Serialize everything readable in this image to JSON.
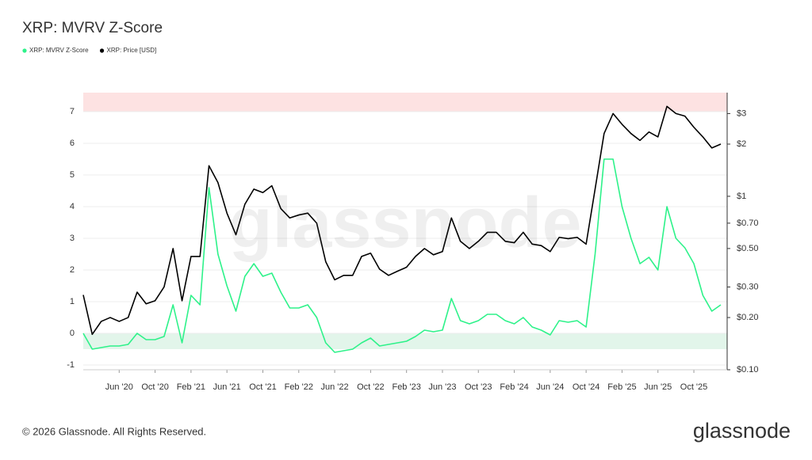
{
  "chart_data": {
    "type": "line",
    "title": "XRP: MVRV Z-Score",
    "watermark": "glassnode",
    "footer": "© 2026 Glassnode. All Rights Reserved.",
    "logo": "glassnode",
    "legend": "top-left",
    "grid": true,
    "x": [
      "2020-02",
      "2020-03",
      "2020-04",
      "2020-05",
      "2020-06",
      "2020-07",
      "2020-08",
      "2020-09",
      "2020-10",
      "2020-11",
      "2020-12",
      "2021-01",
      "2021-02",
      "2021-03",
      "2021-04",
      "2021-05",
      "2021-06",
      "2021-07",
      "2021-08",
      "2021-09",
      "2021-10",
      "2021-11",
      "2021-12",
      "2022-01",
      "2022-02",
      "2022-03",
      "2022-04",
      "2022-05",
      "2022-06",
      "2022-07",
      "2022-08",
      "2022-09",
      "2022-10",
      "2022-11",
      "2022-12",
      "2023-01",
      "2023-02",
      "2023-03",
      "2023-04",
      "2023-05",
      "2023-06",
      "2023-07",
      "2023-08",
      "2023-09",
      "2023-10",
      "2023-11",
      "2023-12",
      "2024-01",
      "2024-02",
      "2024-03",
      "2024-04",
      "2024-05",
      "2024-06",
      "2024-07",
      "2024-08",
      "2024-09",
      "2024-10",
      "2024-11",
      "2024-12",
      "2025-01",
      "2025-02",
      "2025-03",
      "2025-04",
      "2025-05",
      "2025-06",
      "2025-07",
      "2025-08",
      "2025-09",
      "2025-10",
      "2025-11",
      "2025-12",
      "2026-01"
    ],
    "xticks": [
      {
        "value": "2020-06",
        "label": "Jun '20"
      },
      {
        "value": "2020-10",
        "label": "Oct '20"
      },
      {
        "value": "2021-02",
        "label": "Feb '21"
      },
      {
        "value": "2021-06",
        "label": "Jun '21"
      },
      {
        "value": "2021-10",
        "label": "Oct '21"
      },
      {
        "value": "2022-02",
        "label": "Feb '22"
      },
      {
        "value": "2022-06",
        "label": "Jun '22"
      },
      {
        "value": "2022-10",
        "label": "Oct '22"
      },
      {
        "value": "2023-02",
        "label": "Feb '23"
      },
      {
        "value": "2023-06",
        "label": "Jun '23"
      },
      {
        "value": "2023-10",
        "label": "Oct '23"
      },
      {
        "value": "2024-02",
        "label": "Feb '24"
      },
      {
        "value": "2024-06",
        "label": "Jun '24"
      },
      {
        "value": "2024-10",
        "label": "Oct '24"
      },
      {
        "value": "2025-02",
        "label": "Feb '25"
      },
      {
        "value": "2025-06",
        "label": "Jun '25"
      },
      {
        "value": "2025-10",
        "label": "Oct '25"
      }
    ],
    "ylim": [
      -1.15,
      7.6
    ],
    "yticks": [
      -1,
      0,
      1,
      2,
      3,
      4,
      5,
      6,
      7
    ],
    "y2lim": [
      0.1,
      3.96
    ],
    "y2log": true,
    "y2ticks": [
      {
        "value": 0.1,
        "label": "$0.10"
      },
      {
        "value": 0.2,
        "label": "$0.20"
      },
      {
        "value": 0.3,
        "label": "$0.30"
      },
      {
        "value": 0.5,
        "label": "$0.50"
      },
      {
        "value": 0.7,
        "label": "$0.70"
      },
      {
        "value": 1,
        "label": "$1"
      },
      {
        "value": 2,
        "label": "$2"
      },
      {
        "value": 3,
        "label": "$3"
      }
    ],
    "bands": [
      {
        "y": [
          7,
          7.6
        ],
        "color": "#fde2e2"
      },
      {
        "y": [
          -0.5,
          0
        ],
        "color": "#e2f5ea"
      }
    ],
    "series": [
      {
        "name": "XRP: MVRV Z-Score",
        "color": "#2ef28a",
        "axis": "y",
        "values": [
          0.0,
          -0.5,
          -0.45,
          -0.4,
          -0.4,
          -0.35,
          0.0,
          -0.2,
          -0.2,
          -0.1,
          0.9,
          -0.3,
          1.2,
          0.9,
          4.6,
          2.5,
          1.5,
          0.7,
          1.8,
          2.2,
          1.8,
          1.9,
          1.3,
          0.8,
          0.8,
          0.9,
          0.5,
          -0.3,
          -0.6,
          -0.55,
          -0.5,
          -0.3,
          -0.15,
          -0.4,
          -0.35,
          -0.3,
          -0.25,
          -0.1,
          0.1,
          0.05,
          0.1,
          1.1,
          0.4,
          0.3,
          0.4,
          0.6,
          0.6,
          0.4,
          0.3,
          0.5,
          0.2,
          0.1,
          -0.05,
          0.4,
          0.35,
          0.4,
          0.2,
          2.5,
          5.5,
          5.5,
          4.0,
          3.0,
          2.2,
          2.4,
          2.0,
          4.0,
          3.0,
          2.7,
          2.2,
          1.2,
          0.7,
          0.9
        ]
      },
      {
        "name": "XRP: Price [USD]",
        "color": "#000000",
        "axis": "y2",
        "values": [
          0.27,
          0.16,
          0.19,
          0.2,
          0.19,
          0.2,
          0.28,
          0.24,
          0.25,
          0.3,
          0.5,
          0.25,
          0.45,
          0.45,
          1.5,
          1.2,
          0.8,
          0.6,
          0.9,
          1.1,
          1.05,
          1.15,
          0.85,
          0.75,
          0.78,
          0.8,
          0.7,
          0.42,
          0.33,
          0.35,
          0.35,
          0.45,
          0.47,
          0.38,
          0.35,
          0.37,
          0.39,
          0.45,
          0.5,
          0.46,
          0.48,
          0.75,
          0.55,
          0.5,
          0.55,
          0.62,
          0.62,
          0.55,
          0.54,
          0.62,
          0.53,
          0.52,
          0.48,
          0.58,
          0.57,
          0.58,
          0.53,
          1.1,
          2.3,
          3.0,
          2.6,
          2.3,
          2.1,
          2.35,
          2.2,
          3.3,
          3.0,
          2.9,
          2.5,
          2.2,
          1.9,
          2.0
        ]
      }
    ]
  }
}
